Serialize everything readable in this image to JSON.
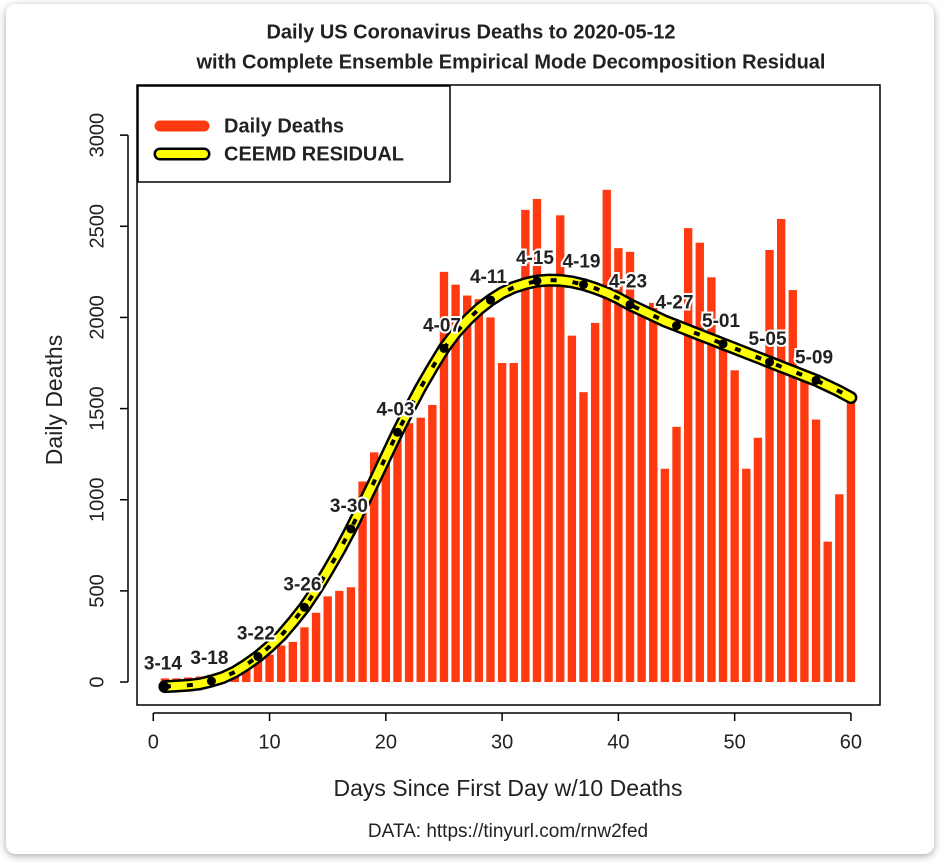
{
  "chart_data": {
    "type": "bar",
    "title": "Daily US Coronavirus Deaths to 2020-05-12",
    "subtitle": "with Complete Ensemble Empirical Mode Decomposition Residual",
    "x_label": "Days Since First Day w/10 Deaths",
    "y_label": "Daily Deaths",
    "footnote": "DATA: https://tinyurl.com/rnw2fed",
    "x": [
      1,
      2,
      3,
      4,
      5,
      6,
      7,
      8,
      9,
      10,
      11,
      12,
      13,
      14,
      15,
      16,
      17,
      18,
      19,
      20,
      21,
      22,
      23,
      24,
      25,
      26,
      27,
      28,
      29,
      30,
      31,
      32,
      33,
      34,
      35,
      36,
      37,
      38,
      39,
      40,
      41,
      42,
      43,
      44,
      45,
      46,
      47,
      48,
      49,
      50,
      51,
      52,
      53,
      54,
      55,
      56,
      57,
      58,
      59,
      60
    ],
    "series": [
      {
        "name": "Daily Deaths",
        "color": "#ff3a10",
        "values": [
          20,
          20,
          25,
          30,
          40,
          55,
          60,
          90,
          110,
          150,
          200,
          220,
          300,
          380,
          470,
          500,
          520,
          1100,
          1260,
          1200,
          1350,
          1420,
          1450,
          1520,
          2250,
          2180,
          2120,
          2100,
          2000,
          1750,
          1750,
          2590,
          2650,
          2200,
          2560,
          1900,
          1590,
          1970,
          2700,
          2380,
          2360,
          2020,
          2080,
          1170,
          1400,
          2490,
          2410,
          2220,
          1850,
          1710,
          1170,
          1340,
          2370,
          2540,
          2150,
          1700,
          1440,
          770,
          1030,
          1550
        ]
      },
      {
        "name": "CEEMD RESIDUAL",
        "color": "#ffff00",
        "values": [
          -25,
          -22,
          -18,
          -10,
          5,
          25,
          55,
          95,
          140,
          195,
          255,
          330,
          410,
          505,
          610,
          720,
          840,
          970,
          1100,
          1235,
          1370,
          1495,
          1615,
          1725,
          1830,
          1915,
          1985,
          2045,
          2095,
          2135,
          2165,
          2185,
          2200,
          2205,
          2203,
          2195,
          2180,
          2160,
          2135,
          2105,
          2070,
          2040,
          2010,
          1980,
          1955,
          1930,
          1905,
          1880,
          1855,
          1830,
          1805,
          1780,
          1755,
          1730,
          1705,
          1680,
          1655,
          1625,
          1595,
          1560
        ]
      }
    ],
    "annotations": [
      {
        "text": "3-14",
        "x": 1
      },
      {
        "text": "3-18",
        "x": 5
      },
      {
        "text": "3-22",
        "x": 9
      },
      {
        "text": "3-26",
        "x": 13
      },
      {
        "text": "3-30",
        "x": 17
      },
      {
        "text": "4-03",
        "x": 21
      },
      {
        "text": "4-07",
        "x": 25
      },
      {
        "text": "4-11",
        "x": 29
      },
      {
        "text": "4-15",
        "x": 33
      },
      {
        "text": "4-19",
        "x": 37
      },
      {
        "text": "4-23",
        "x": 41
      },
      {
        "text": "4-27",
        "x": 45
      },
      {
        "text": "5-01",
        "x": 49
      },
      {
        "text": "5-05",
        "x": 53
      },
      {
        "text": "5-09",
        "x": 57
      }
    ],
    "xlim": [
      -1.4,
      62.5
    ],
    "ylim": [
      -126,
      3275
    ],
    "xticks": [
      0,
      10,
      20,
      30,
      40,
      50,
      60
    ],
    "yticks": [
      0,
      500,
      1000,
      1500,
      2000,
      2500,
      3000
    ],
    "legend": "top-left"
  }
}
